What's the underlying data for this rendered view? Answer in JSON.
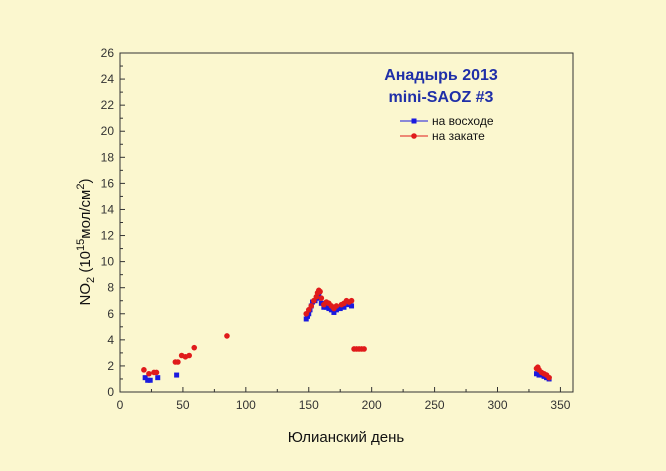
{
  "chart_data": {
    "type": "scatter",
    "title": [
      "Анадырь 2013",
      "mini-SAOZ #3"
    ],
    "xlabel": "Юлианский день",
    "ylabel": {
      "base": "NO",
      "sub": "2",
      "rest1": " (10",
      "sup": "15",
      "rest2": "мол/см",
      "sup2": "2",
      "rest3": ")"
    },
    "xlim": [
      0,
      360
    ],
    "ylim": [
      0,
      26
    ],
    "xticks": [
      0,
      50,
      100,
      150,
      200,
      250,
      300,
      350
    ],
    "yticks": [
      0,
      2,
      4,
      6,
      8,
      10,
      12,
      14,
      16,
      18,
      20,
      22,
      24,
      26
    ],
    "grid": false,
    "legend_position": "top-right",
    "colors": {
      "sunrise": "#1a1adf",
      "sunset": "#e01b1b",
      "title": "#1f2fa8",
      "background": "#fbf7cf"
    },
    "series": [
      {
        "name": "на восходе",
        "marker": "square",
        "points": [
          [
            20,
            1.1
          ],
          [
            22,
            0.9
          ],
          [
            24,
            0.9
          ],
          [
            30,
            1.1
          ],
          [
            45,
            1.3
          ],
          [
            148,
            5.6
          ],
          [
            149,
            5.8
          ],
          [
            150,
            6.0
          ],
          [
            151,
            6.3
          ],
          [
            152,
            6.6
          ],
          [
            153,
            6.9
          ],
          [
            155,
            7.0
          ],
          [
            157,
            7.2
          ],
          [
            158,
            7.5
          ],
          [
            159,
            7.2
          ],
          [
            160,
            6.8
          ],
          [
            162,
            6.5
          ],
          [
            164,
            6.5
          ],
          [
            166,
            6.4
          ],
          [
            168,
            6.3
          ],
          [
            170,
            6.1
          ],
          [
            172,
            6.3
          ],
          [
            175,
            6.4
          ],
          [
            178,
            6.5
          ],
          [
            182,
            6.7
          ],
          [
            184,
            6.6
          ],
          [
            331,
            1.4
          ],
          [
            333,
            1.3
          ],
          [
            335,
            1.3
          ],
          [
            337,
            1.2
          ],
          [
            339,
            1.1
          ],
          [
            341,
            1.0
          ]
        ]
      },
      {
        "name": "на закате",
        "marker": "circle",
        "points": [
          [
            19,
            1.7
          ],
          [
            23,
            1.4
          ],
          [
            27,
            1.5
          ],
          [
            29,
            1.5
          ],
          [
            44,
            2.3
          ],
          [
            46,
            2.3
          ],
          [
            49,
            2.8
          ],
          [
            52,
            2.7
          ],
          [
            55,
            2.8
          ],
          [
            59,
            3.4
          ],
          [
            85,
            4.3
          ],
          [
            148,
            6.0
          ],
          [
            150,
            6.3
          ],
          [
            152,
            6.6
          ],
          [
            154,
            7.0
          ],
          [
            156,
            7.3
          ],
          [
            157,
            7.6
          ],
          [
            158,
            7.8
          ],
          [
            159,
            7.7
          ],
          [
            160,
            7.2
          ],
          [
            162,
            6.7
          ],
          [
            164,
            6.9
          ],
          [
            166,
            6.8
          ],
          [
            168,
            6.6
          ],
          [
            170,
            6.4
          ],
          [
            172,
            6.6
          ],
          [
            176,
            6.7
          ],
          [
            178,
            6.8
          ],
          [
            180,
            7.0
          ],
          [
            182,
            6.9
          ],
          [
            184,
            7.0
          ],
          [
            186,
            3.3
          ],
          [
            188,
            3.3
          ],
          [
            190,
            3.3
          ],
          [
            192,
            3.3
          ],
          [
            194,
            3.3
          ],
          [
            331,
            1.8
          ],
          [
            332,
            1.9
          ],
          [
            333,
            1.7
          ],
          [
            335,
            1.5
          ],
          [
            337,
            1.4
          ],
          [
            339,
            1.3
          ],
          [
            341,
            1.1
          ]
        ]
      }
    ]
  }
}
